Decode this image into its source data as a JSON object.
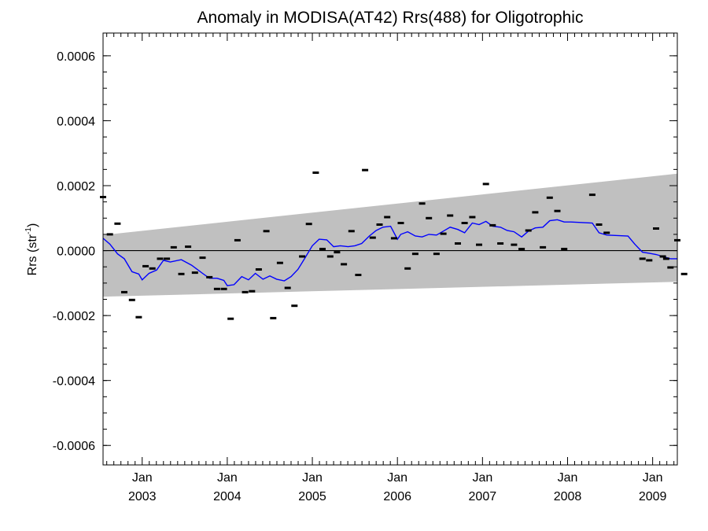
{
  "chart_data": {
    "type": "scatter",
    "title": "Anomaly in MODISA(AT42) Rrs(488) for Oligotrophic",
    "ylabel": {
      "base": "Rrs (str",
      "superscript": "-1",
      "suffix": ")"
    },
    "xlabel": "",
    "xlim": [
      2002.54,
      2009.29
    ],
    "ylim": [
      -0.00066,
      0.00067
    ],
    "yticks": [
      "0.0006",
      "0.0004",
      "0.0002",
      "0.0000",
      "-0.0002",
      "-0.0004",
      "-0.0006"
    ],
    "xticks": [
      {
        "year": 2003,
        "month": "Jan",
        "year_label": "2003"
      },
      {
        "year": 2004,
        "month": "Jan",
        "year_label": "2004"
      },
      {
        "year": 2005,
        "month": "Jan",
        "year_label": "2005"
      },
      {
        "year": 2006,
        "month": "Jan",
        "year_label": "2006"
      },
      {
        "year": 2007,
        "month": "Jan",
        "year_label": "2007"
      },
      {
        "year": 2008,
        "month": "Jan",
        "year_label": "2008"
      },
      {
        "year": 2009,
        "month": "Jan",
        "year_label": "2009"
      }
    ],
    "grid": false,
    "zero_line": 0.0,
    "confidence_band": {
      "color": "#c0c0c0",
      "upper_start": 4.8e-05,
      "upper_end": 0.000237,
      "lower_start": -0.000142,
      "lower_end": -9.6e-05
    },
    "series": [
      {
        "kind": "monthly_anomaly",
        "color": "#000000",
        "points": [
          [
            2002.54,
            0.000165
          ],
          [
            2002.62,
            5e-05
          ],
          [
            2002.71,
            8.3e-05
          ],
          [
            2002.79,
            -0.000128
          ],
          [
            2002.88,
            -0.000152
          ],
          [
            2002.96,
            -0.000205
          ],
          [
            2003.04,
            -4.8e-05
          ],
          [
            2003.12,
            -5.5e-05
          ],
          [
            2003.21,
            -2.5e-05
          ],
          [
            2003.29,
            -2.5e-05
          ],
          [
            2003.37,
            1e-05
          ],
          [
            2003.46,
            -7.2e-05
          ],
          [
            2003.54,
            1.2e-05
          ],
          [
            2003.62,
            -6.8e-05
          ],
          [
            2003.71,
            -2.2e-05
          ],
          [
            2003.79,
            -8.2e-05
          ],
          [
            2003.88,
            -0.000118
          ],
          [
            2003.96,
            -0.000118
          ],
          [
            2004.04,
            -0.00021
          ],
          [
            2004.12,
            3.2e-05
          ],
          [
            2004.21,
            -0.000128
          ],
          [
            2004.29,
            -0.000125
          ],
          [
            2004.37,
            -5.8e-05
          ],
          [
            2004.46,
            6e-05
          ],
          [
            2004.54,
            -0.000208
          ],
          [
            2004.62,
            -3.8e-05
          ],
          [
            2004.71,
            -0.000115
          ],
          [
            2004.79,
            -0.00017
          ],
          [
            2004.88,
            -1.8e-05
          ],
          [
            2004.96,
            8.2e-05
          ],
          [
            2005.04,
            0.00024
          ],
          [
            2005.12,
            5e-06
          ],
          [
            2005.21,
            -1.8e-05
          ],
          [
            2005.29,
            -5e-06
          ],
          [
            2005.37,
            -4.2e-05
          ],
          [
            2005.46,
            6e-05
          ],
          [
            2005.54,
            -7.5e-05
          ],
          [
            2005.62,
            0.000248
          ],
          [
            2005.71,
            4e-05
          ],
          [
            2005.79,
            8e-05
          ],
          [
            2005.88,
            0.000103
          ],
          [
            2005.96,
            3.8e-05
          ],
          [
            2006.04,
            8.5e-05
          ],
          [
            2006.12,
            -5.5e-05
          ],
          [
            2006.21,
            -1e-05
          ],
          [
            2006.29,
            0.000145
          ],
          [
            2006.37,
            0.0001
          ],
          [
            2006.46,
            -1e-05
          ],
          [
            2006.54,
            5.2e-05
          ],
          [
            2006.62,
            0.000108
          ],
          [
            2006.71,
            2.2e-05
          ],
          [
            2006.79,
            8.5e-05
          ],
          [
            2006.88,
            0.000103
          ],
          [
            2006.96,
            1.8e-05
          ],
          [
            2007.04,
            0.000205
          ],
          [
            2007.12,
            7.8e-05
          ],
          [
            2007.21,
            2.2e-05
          ],
          [
            2007.37,
            1.8e-05
          ],
          [
            2007.46,
            5e-06
          ],
          [
            2007.54,
            6.2e-05
          ],
          [
            2007.62,
            0.000118
          ],
          [
            2007.71,
            1e-05
          ],
          [
            2007.79,
            0.000163
          ],
          [
            2007.88,
            0.000122
          ],
          [
            2007.96,
            5e-06
          ],
          [
            2008.29,
            0.000172
          ],
          [
            2008.37,
            8e-05
          ],
          [
            2008.46,
            5.5e-05
          ],
          [
            2008.88,
            -2.5e-05
          ],
          [
            2008.96,
            -3e-05
          ],
          [
            2009.04,
            6.8e-05
          ],
          [
            2009.12,
            -1.8e-05
          ],
          [
            2009.16,
            -2.5e-05
          ],
          [
            2009.21,
            -5.2e-05
          ],
          [
            2009.29,
            3.2e-05
          ],
          [
            2009.37,
            -7.2e-05
          ]
        ]
      },
      {
        "kind": "running_mean",
        "color": "#0000ff",
        "points": [
          [
            2002.54,
            3.8e-05
          ],
          [
            2002.62,
            2e-05
          ],
          [
            2002.71,
            -1e-05
          ],
          [
            2002.79,
            -2.5e-05
          ],
          [
            2002.88,
            -6.5e-05
          ],
          [
            2002.96,
            -7.2e-05
          ],
          [
            2003.0,
            -9e-05
          ],
          [
            2003.08,
            -7e-05
          ],
          [
            2003.17,
            -6e-05
          ],
          [
            2003.25,
            -3e-05
          ],
          [
            2003.33,
            -3.5e-05
          ],
          [
            2003.46,
            -2.8e-05
          ],
          [
            2003.58,
            -4.5e-05
          ],
          [
            2003.71,
            -7e-05
          ],
          [
            2003.79,
            -8.5e-05
          ],
          [
            2003.88,
            -8.5e-05
          ],
          [
            2003.96,
            -9.2e-05
          ],
          [
            2004.0,
            -0.000108
          ],
          [
            2004.08,
            -0.000105
          ],
          [
            2004.17,
            -8e-05
          ],
          [
            2004.25,
            -9e-05
          ],
          [
            2004.33,
            -7e-05
          ],
          [
            2004.42,
            -8.8e-05
          ],
          [
            2004.5,
            -7.8e-05
          ],
          [
            2004.58,
            -8.8e-05
          ],
          [
            2004.67,
            -9.3e-05
          ],
          [
            2004.75,
            -8e-05
          ],
          [
            2004.83,
            -5.8e-05
          ],
          [
            2004.92,
            -2e-05
          ],
          [
            2005.0,
            1.5e-05
          ],
          [
            2005.08,
            3.5e-05
          ],
          [
            2005.17,
            3.3e-05
          ],
          [
            2005.25,
            1.2e-05
          ],
          [
            2005.33,
            1.5e-05
          ],
          [
            2005.42,
            1.2e-05
          ],
          [
            2005.5,
            1.5e-05
          ],
          [
            2005.58,
            2.2e-05
          ],
          [
            2005.67,
            4.5e-05
          ],
          [
            2005.75,
            6.2e-05
          ],
          [
            2005.83,
            7.2e-05
          ],
          [
            2005.92,
            7.5e-05
          ],
          [
            2006.0,
            3.5e-05
          ],
          [
            2006.04,
            5e-05
          ],
          [
            2006.12,
            5.8e-05
          ],
          [
            2006.21,
            4.5e-05
          ],
          [
            2006.29,
            4.2e-05
          ],
          [
            2006.37,
            5e-05
          ],
          [
            2006.46,
            4.8e-05
          ],
          [
            2006.54,
            6e-05
          ],
          [
            2006.62,
            7.2e-05
          ],
          [
            2006.71,
            6.5e-05
          ],
          [
            2006.79,
            5.5e-05
          ],
          [
            2006.88,
            8.5e-05
          ],
          [
            2006.96,
            8e-05
          ],
          [
            2007.04,
            9e-05
          ],
          [
            2007.12,
            7.5e-05
          ],
          [
            2007.21,
            7.2e-05
          ],
          [
            2007.29,
            6.2e-05
          ],
          [
            2007.37,
            5.8e-05
          ],
          [
            2007.46,
            4.2e-05
          ],
          [
            2007.54,
            6e-05
          ],
          [
            2007.62,
            7e-05
          ],
          [
            2007.71,
            7.2e-05
          ],
          [
            2007.79,
            9.2e-05
          ],
          [
            2007.88,
            9.5e-05
          ],
          [
            2007.96,
            8.8e-05
          ],
          [
            2008.04,
            8.8e-05
          ],
          [
            2008.29,
            8.5e-05
          ],
          [
            2008.37,
            5.5e-05
          ],
          [
            2008.46,
            4.8e-05
          ],
          [
            2008.71,
            4.5e-05
          ],
          [
            2008.79,
            2e-05
          ],
          [
            2008.88,
            -5e-06
          ],
          [
            2008.96,
            -8e-06
          ],
          [
            2009.04,
            -1.2e-05
          ],
          [
            2009.12,
            -1.8e-05
          ],
          [
            2009.21,
            -2.5e-05
          ],
          [
            2009.29,
            -2.5e-05
          ]
        ]
      }
    ]
  }
}
